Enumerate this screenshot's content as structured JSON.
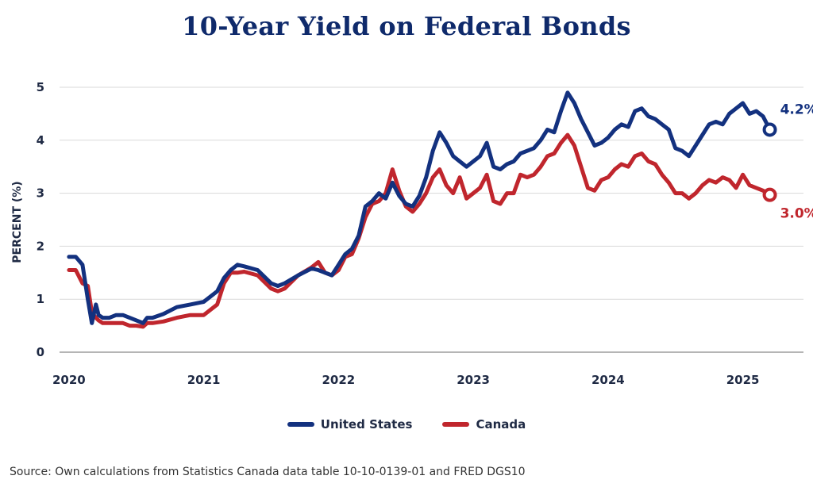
{
  "title": "10-Year Yield on Federal Bonds",
  "source": "Source: Own calculations from Statistics Canada data table 10-10-0139-01 and FRED DGS10",
  "colors": {
    "us": "#13317f",
    "canada": "#c0262d",
    "grid": "#d9d9d9",
    "axis": "#b5b5b5",
    "text": "#1f2a44"
  },
  "chart_data": {
    "type": "line",
    "ylabel": "PERCENT (%)",
    "ylim": [
      0,
      5
    ],
    "yticks": [
      0,
      1,
      2,
      3,
      4,
      5
    ],
    "xlim": [
      2019.93,
      2025.45
    ],
    "xticks": [
      2020,
      2021,
      2022,
      2023,
      2024,
      2025
    ],
    "legend_position": "bottom",
    "grid": true,
    "series": [
      {
        "name": "United States",
        "key": "us",
        "end_label": "4.2%",
        "x": [
          2020.0,
          2020.05,
          2020.1,
          2020.14,
          2020.17,
          2020.2,
          2020.22,
          2020.25,
          2020.3,
          2020.35,
          2020.4,
          2020.45,
          2020.5,
          2020.55,
          2020.58,
          2020.62,
          2020.7,
          2020.8,
          2020.9,
          2021.0,
          2021.1,
          2021.15,
          2021.2,
          2021.25,
          2021.3,
          2021.4,
          2021.5,
          2021.55,
          2021.6,
          2021.7,
          2021.8,
          2021.85,
          2021.9,
          2021.95,
          2022.0,
          2022.05,
          2022.1,
          2022.15,
          2022.2,
          2022.25,
          2022.3,
          2022.35,
          2022.4,
          2022.45,
          2022.5,
          2022.55,
          2022.6,
          2022.65,
          2022.7,
          2022.75,
          2022.8,
          2022.85,
          2022.9,
          2022.95,
          2023.0,
          2023.05,
          2023.1,
          2023.15,
          2023.2,
          2023.25,
          2023.3,
          2023.35,
          2023.4,
          2023.45,
          2023.5,
          2023.55,
          2023.6,
          2023.65,
          2023.7,
          2023.75,
          2023.8,
          2023.85,
          2023.9,
          2023.95,
          2024.0,
          2024.05,
          2024.1,
          2024.15,
          2024.2,
          2024.25,
          2024.3,
          2024.35,
          2024.4,
          2024.45,
          2024.5,
          2024.55,
          2024.6,
          2024.65,
          2024.7,
          2024.75,
          2024.8,
          2024.85,
          2024.9,
          2024.95,
          2025.0,
          2025.05,
          2025.1,
          2025.15,
          2025.2
        ],
        "y": [
          1.8,
          1.8,
          1.65,
          1.0,
          0.55,
          0.9,
          0.7,
          0.65,
          0.65,
          0.7,
          0.7,
          0.65,
          0.6,
          0.55,
          0.65,
          0.65,
          0.72,
          0.85,
          0.9,
          0.95,
          1.15,
          1.4,
          1.55,
          1.65,
          1.62,
          1.55,
          1.3,
          1.25,
          1.3,
          1.45,
          1.58,
          1.55,
          1.5,
          1.45,
          1.65,
          1.85,
          1.95,
          2.2,
          2.75,
          2.85,
          3.0,
          2.9,
          3.2,
          2.95,
          2.8,
          2.75,
          2.95,
          3.3,
          3.8,
          4.15,
          3.95,
          3.7,
          3.6,
          3.5,
          3.6,
          3.7,
          3.95,
          3.5,
          3.45,
          3.55,
          3.6,
          3.75,
          3.8,
          3.85,
          4.0,
          4.2,
          4.15,
          4.55,
          4.9,
          4.7,
          4.4,
          4.15,
          3.9,
          3.95,
          4.05,
          4.2,
          4.3,
          4.25,
          4.55,
          4.6,
          4.45,
          4.4,
          4.3,
          4.2,
          3.85,
          3.8,
          3.7,
          3.9,
          4.1,
          4.3,
          4.35,
          4.3,
          4.5,
          4.6,
          4.7,
          4.5,
          4.55,
          4.45,
          4.2
        ]
      },
      {
        "name": "Canada",
        "key": "canada",
        "end_label": "3.0%",
        "x": [
          2020.0,
          2020.05,
          2020.1,
          2020.14,
          2020.17,
          2020.2,
          2020.22,
          2020.25,
          2020.3,
          2020.35,
          2020.4,
          2020.45,
          2020.5,
          2020.55,
          2020.58,
          2020.62,
          2020.7,
          2020.8,
          2020.9,
          2021.0,
          2021.1,
          2021.15,
          2021.2,
          2021.25,
          2021.3,
          2021.4,
          2021.5,
          2021.55,
          2021.6,
          2021.7,
          2021.8,
          2021.85,
          2021.9,
          2021.95,
          2022.0,
          2022.05,
          2022.1,
          2022.15,
          2022.2,
          2022.25,
          2022.3,
          2022.35,
          2022.4,
          2022.45,
          2022.5,
          2022.55,
          2022.6,
          2022.65,
          2022.7,
          2022.75,
          2022.8,
          2022.85,
          2022.9,
          2022.95,
          2023.0,
          2023.05,
          2023.1,
          2023.15,
          2023.2,
          2023.25,
          2023.3,
          2023.35,
          2023.4,
          2023.45,
          2023.5,
          2023.55,
          2023.6,
          2023.65,
          2023.7,
          2023.75,
          2023.8,
          2023.85,
          2023.9,
          2023.95,
          2024.0,
          2024.05,
          2024.1,
          2024.15,
          2024.2,
          2024.25,
          2024.3,
          2024.35,
          2024.4,
          2024.45,
          2024.5,
          2024.55,
          2024.6,
          2024.65,
          2024.7,
          2024.75,
          2024.8,
          2024.85,
          2024.9,
          2024.95,
          2025.0,
          2025.05,
          2025.1,
          2025.15,
          2025.2
        ],
        "y": [
          1.55,
          1.55,
          1.3,
          1.25,
          0.75,
          0.65,
          0.6,
          0.55,
          0.55,
          0.55,
          0.55,
          0.5,
          0.5,
          0.48,
          0.55,
          0.55,
          0.58,
          0.65,
          0.7,
          0.7,
          0.9,
          1.3,
          1.5,
          1.5,
          1.52,
          1.45,
          1.2,
          1.15,
          1.2,
          1.45,
          1.6,
          1.7,
          1.5,
          1.45,
          1.55,
          1.8,
          1.85,
          2.15,
          2.55,
          2.8,
          2.85,
          3.0,
          3.45,
          3.05,
          2.75,
          2.65,
          2.8,
          3.0,
          3.3,
          3.45,
          3.15,
          3.0,
          3.3,
          2.9,
          3.0,
          3.1,
          3.35,
          2.85,
          2.8,
          3.0,
          3.0,
          3.35,
          3.3,
          3.35,
          3.5,
          3.7,
          3.75,
          3.95,
          4.1,
          3.9,
          3.5,
          3.1,
          3.05,
          3.25,
          3.3,
          3.45,
          3.55,
          3.5,
          3.7,
          3.75,
          3.6,
          3.55,
          3.35,
          3.2,
          3.0,
          3.0,
          2.9,
          3.0,
          3.15,
          3.25,
          3.2,
          3.3,
          3.25,
          3.1,
          3.35,
          3.15,
          3.1,
          3.05,
          2.97
        ]
      }
    ]
  }
}
